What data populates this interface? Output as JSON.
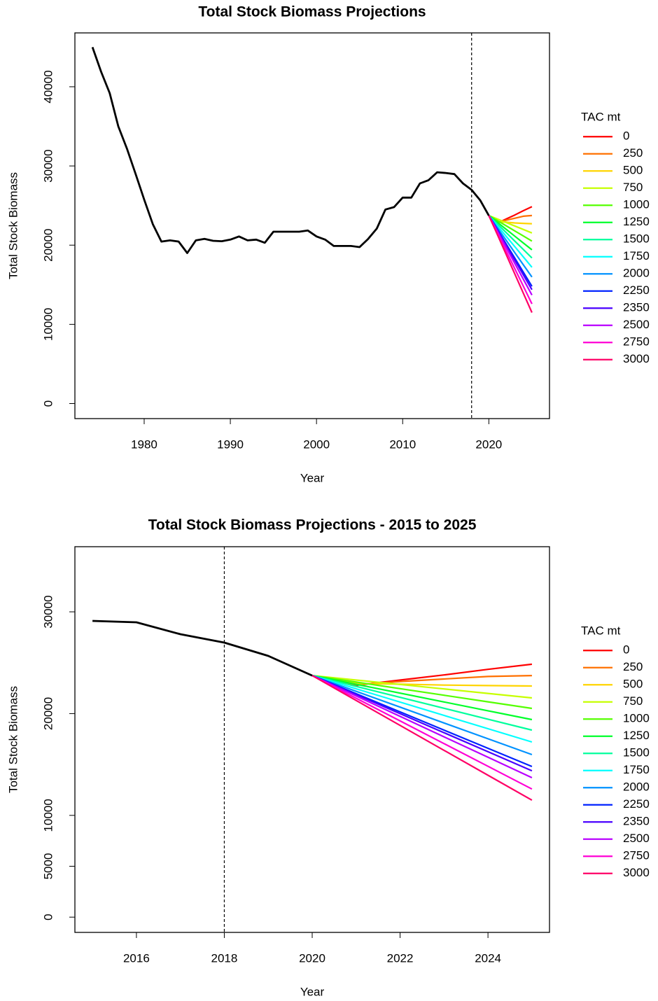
{
  "chart_data": [
    {
      "type": "line",
      "title": "Total Stock Biomass Projections",
      "x_label": "Year",
      "y_label": "Total Stock Biomass",
      "xlim": [
        1971.96,
        2027.04
      ],
      "ylim": [
        -1900,
        46800
      ],
      "xticks": [
        1980,
        1990,
        2000,
        2010,
        2020
      ],
      "yticks": [
        0,
        10000,
        20000,
        30000,
        40000
      ],
      "vline": 2018,
      "legend_title": "TAC mt",
      "legend_position": "right",
      "series": [
        {
          "name": "0",
          "color": "#ff0000",
          "x": [
            2020,
            2021,
            2022,
            2023,
            2024,
            2025
          ],
          "values": [
            23740,
            22780,
            23300,
            23800,
            24350,
            24850
          ]
        },
        {
          "name": "250",
          "color": "#ff7000",
          "x": [
            2020,
            2021,
            2022,
            2023,
            2024,
            2025
          ],
          "values": [
            23740,
            22850,
            23150,
            23400,
            23650,
            23740
          ]
        },
        {
          "name": "500",
          "color": "#ffd400",
          "x": [
            2020,
            2021,
            2022,
            2023,
            2024,
            2025
          ],
          "values": [
            23740,
            22950,
            22900,
            22800,
            22750,
            22710
          ]
        },
        {
          "name": "750",
          "color": "#c6ff00",
          "x": [
            2020,
            2021,
            2022,
            2023,
            2024,
            2025
          ],
          "values": [
            23740,
            23300,
            22860,
            22420,
            21980,
            21540
          ]
        },
        {
          "name": "1000",
          "color": "#55ff00",
          "x": [
            2020,
            2021,
            2022,
            2023,
            2024,
            2025
          ],
          "values": [
            23740,
            23094,
            22448,
            21802,
            21156,
            20510
          ]
        },
        {
          "name": "1250",
          "color": "#00ff2b",
          "x": [
            2020,
            2021,
            2022,
            2023,
            2024,
            2025
          ],
          "values": [
            23740,
            22874,
            22008,
            21142,
            20276,
            19410
          ]
        },
        {
          "name": "1500",
          "color": "#00ff9c",
          "x": [
            2020,
            2021,
            2022,
            2023,
            2024,
            2025
          ],
          "values": [
            23740,
            22668,
            21596,
            20524,
            19452,
            18380
          ]
        },
        {
          "name": "1750",
          "color": "#00ffff",
          "x": [
            2020,
            2021,
            2022,
            2023,
            2024,
            2025
          ],
          "values": [
            23740,
            22434,
            21128,
            19822,
            18516,
            17210
          ]
        },
        {
          "name": "2000",
          "color": "#0092ff",
          "x": [
            2020,
            2021,
            2022,
            2023,
            2024,
            2025
          ],
          "values": [
            23740,
            22186,
            20632,
            19078,
            17524,
            15970
          ]
        },
        {
          "name": "2250",
          "color": "#0022ff",
          "x": [
            2020,
            2021,
            2022,
            2023,
            2024,
            2025
          ],
          "values": [
            23740,
            21952,
            20164,
            18376,
            16588,
            14800
          ]
        },
        {
          "name": "2350",
          "color": "#4900ff",
          "x": [
            2020,
            2021,
            2022,
            2023,
            2024,
            2025
          ],
          "values": [
            23740,
            21868,
            19996,
            18124,
            16252,
            14380
          ]
        },
        {
          "name": "2500",
          "color": "#b900ff",
          "x": [
            2020,
            2021,
            2022,
            2023,
            2024,
            2025
          ],
          "values": [
            23740,
            21732,
            19724,
            17716,
            15708,
            13700
          ]
        },
        {
          "name": "2750",
          "color": "#ff00d5",
          "x": [
            2020,
            2021,
            2022,
            2023,
            2024,
            2025
          ],
          "values": [
            23740,
            21510,
            19280,
            17050,
            14820,
            12590
          ]
        },
        {
          "name": "3000",
          "color": "#ff0066",
          "x": [
            2020,
            2021,
            2022,
            2023,
            2024,
            2025
          ],
          "values": [
            23740,
            21290,
            18840,
            16390,
            13940,
            11490
          ]
        },
        {
          "color": "#000000",
          "x": [
            1974,
            1975,
            1976,
            1977,
            1978,
            1979,
            1980,
            1981,
            1982,
            1983,
            1984,
            1985,
            1986,
            1987,
            1988,
            1989,
            1990,
            1991,
            1992,
            1993,
            1994,
            1995,
            1996,
            1997,
            1998,
            1999,
            2000,
            2001,
            2002,
            2003,
            2004,
            2005,
            2006,
            2007,
            2008,
            2009,
            2010,
            2011,
            2012,
            2013,
            2014,
            2015,
            2016,
            2017,
            2018,
            2019,
            2020
          ],
          "values": [
            45000,
            41900,
            39200,
            35000,
            32200,
            29000,
            25750,
            22650,
            20450,
            20600,
            20450,
            19000,
            20600,
            20800,
            20550,
            20500,
            20700,
            21100,
            20600,
            20700,
            20300,
            21700,
            21700,
            21700,
            21700,
            21850,
            21100,
            20700,
            19900,
            19900,
            19900,
            19750,
            20800,
            22100,
            24500,
            24800,
            26000,
            26000,
            27800,
            28200,
            29200,
            29110,
            28970,
            27800,
            26980,
            25670,
            23740
          ]
        }
      ]
    },
    {
      "type": "line",
      "title": "Total Stock Biomass Projections - 2015 to 2025",
      "x_label": "Year",
      "y_label": "Total Stock Biomass",
      "xlim": [
        2014.6,
        2025.4
      ],
      "ylim": [
        -1500,
        36400
      ],
      "xticks": [
        2016,
        2018,
        2020,
        2022,
        2024
      ],
      "yticks": [
        0,
        5000,
        10000,
        20000,
        30000
      ],
      "vline": 2018,
      "legend_title": "TAC mt",
      "legend_position": "right",
      "series": [
        {
          "name": "0",
          "color": "#ff0000",
          "x": [
            2020,
            2021,
            2022,
            2023,
            2024,
            2025
          ],
          "values": [
            23740,
            22780,
            23300,
            23800,
            24350,
            24850
          ]
        },
        {
          "name": "250",
          "color": "#ff7000",
          "x": [
            2020,
            2021,
            2022,
            2023,
            2024,
            2025
          ],
          "values": [
            23740,
            22850,
            23150,
            23400,
            23650,
            23740
          ]
        },
        {
          "name": "500",
          "color": "#ffd400",
          "x": [
            2020,
            2021,
            2022,
            2023,
            2024,
            2025
          ],
          "values": [
            23740,
            22950,
            22900,
            22800,
            22750,
            22710
          ]
        },
        {
          "name": "750",
          "color": "#c6ff00",
          "x": [
            2020,
            2021,
            2022,
            2023,
            2024,
            2025
          ],
          "values": [
            23740,
            23300,
            22860,
            22420,
            21980,
            21540
          ]
        },
        {
          "name": "1000",
          "color": "#55ff00",
          "x": [
            2020,
            2021,
            2022,
            2023,
            2024,
            2025
          ],
          "values": [
            23740,
            23094,
            22448,
            21802,
            21156,
            20510
          ]
        },
        {
          "name": "1250",
          "color": "#00ff2b",
          "x": [
            2020,
            2021,
            2022,
            2023,
            2024,
            2025
          ],
          "values": [
            23740,
            22874,
            22008,
            21142,
            20276,
            19410
          ]
        },
        {
          "name": "1500",
          "color": "#00ff9c",
          "x": [
            2020,
            2021,
            2022,
            2023,
            2024,
            2025
          ],
          "values": [
            23740,
            22668,
            21596,
            20524,
            19452,
            18380
          ]
        },
        {
          "name": "1750",
          "color": "#00ffff",
          "x": [
            2020,
            2021,
            2022,
            2023,
            2024,
            2025
          ],
          "values": [
            23740,
            22434,
            21128,
            19822,
            18516,
            17210
          ]
        },
        {
          "name": "2000",
          "color": "#0092ff",
          "x": [
            2020,
            2021,
            2022,
            2023,
            2024,
            2025
          ],
          "values": [
            23740,
            22186,
            20632,
            19078,
            17524,
            15970
          ]
        },
        {
          "name": "2250",
          "color": "#0022ff",
          "x": [
            2020,
            2021,
            2022,
            2023,
            2024,
            2025
          ],
          "values": [
            23740,
            21952,
            20164,
            18376,
            16588,
            14800
          ]
        },
        {
          "name": "2350",
          "color": "#4900ff",
          "x": [
            2020,
            2021,
            2022,
            2023,
            2024,
            2025
          ],
          "values": [
            23740,
            21868,
            19996,
            18124,
            16252,
            14380
          ]
        },
        {
          "name": "2500",
          "color": "#b900ff",
          "x": [
            2020,
            2021,
            2022,
            2023,
            2024,
            2025
          ],
          "values": [
            23740,
            21732,
            19724,
            17716,
            15708,
            13700
          ]
        },
        {
          "name": "2750",
          "color": "#ff00d5",
          "x": [
            2020,
            2021,
            2022,
            2023,
            2024,
            2025
          ],
          "values": [
            23740,
            21510,
            19280,
            17050,
            14820,
            12590
          ]
        },
        {
          "name": "3000",
          "color": "#ff0066",
          "x": [
            2020,
            2021,
            2022,
            2023,
            2024,
            2025
          ],
          "values": [
            23740,
            21290,
            18840,
            16390,
            13940,
            11490
          ]
        },
        {
          "color": "#000000",
          "x": [
            2015,
            2016,
            2017,
            2018,
            2019,
            2020
          ],
          "values": [
            29110,
            28970,
            27800,
            26980,
            25670,
            23740
          ]
        }
      ]
    }
  ]
}
